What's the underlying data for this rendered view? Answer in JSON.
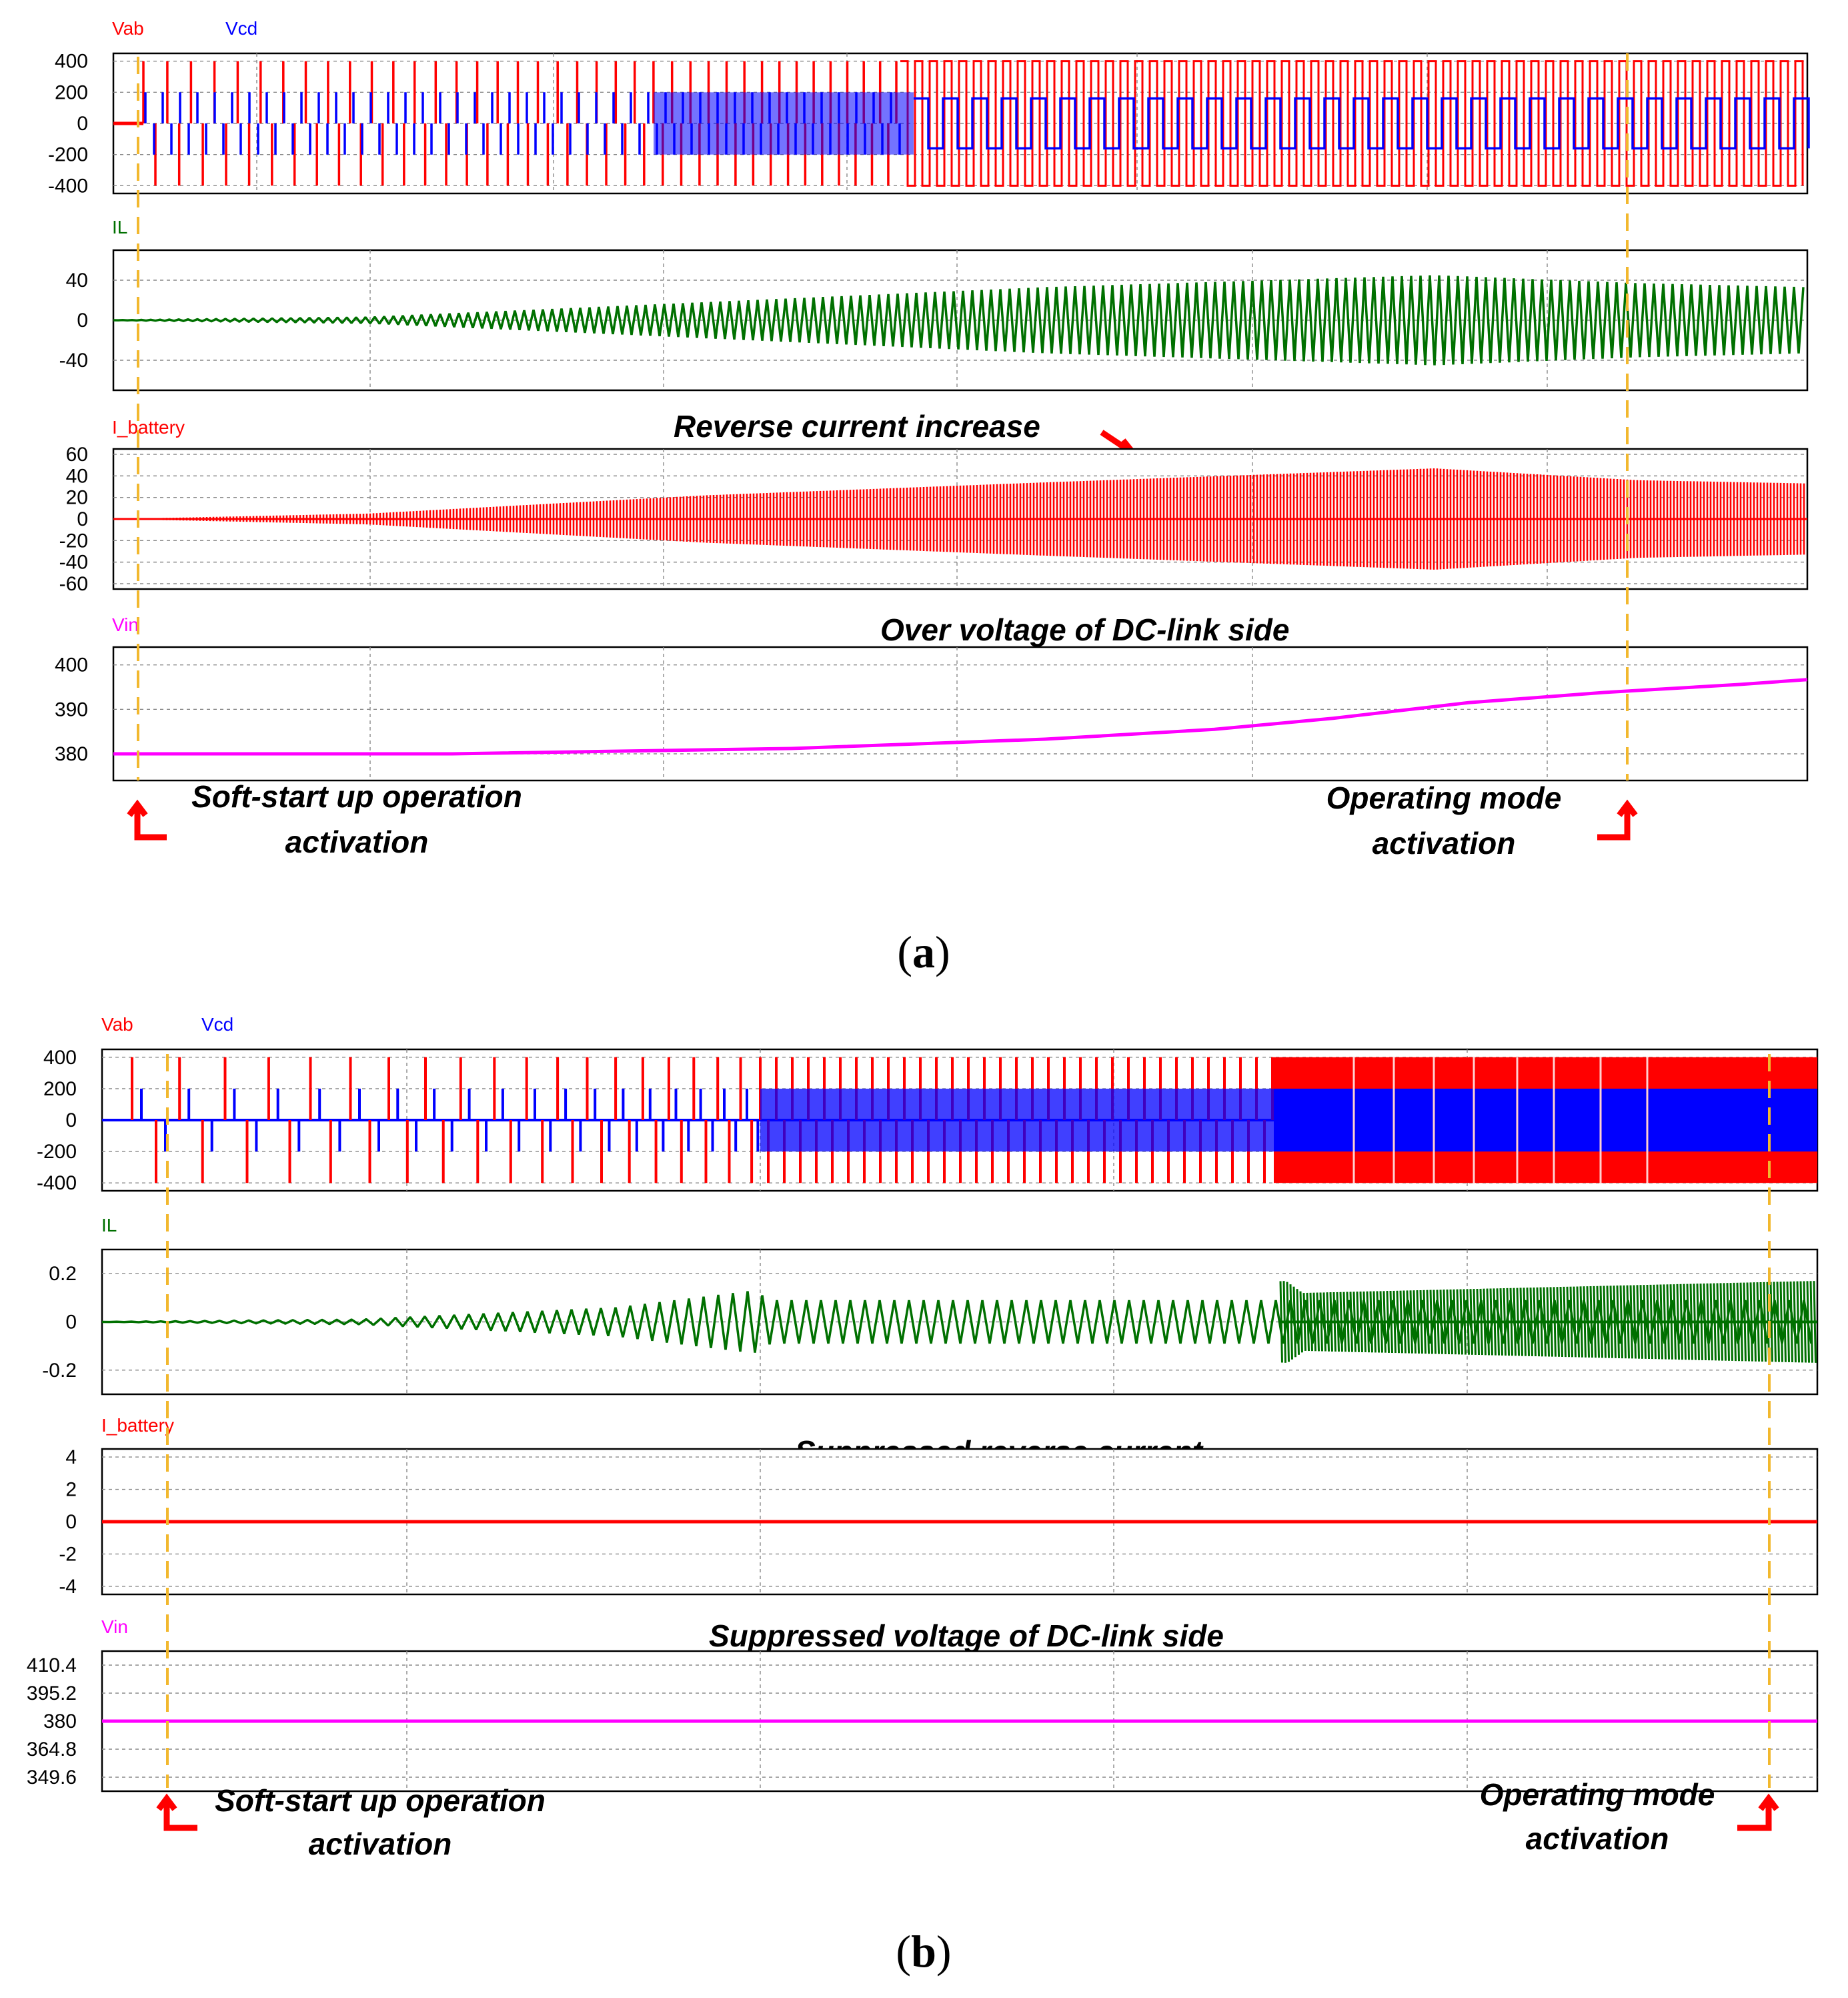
{
  "panels": [
    {
      "label": "(a)",
      "caption": {
        "open": "(",
        "letter": "a",
        "close": ")"
      },
      "signal_labels": {
        "top": [
          "Vab",
          "Vcd"
        ],
        "il": "IL",
        "ibat": "I_battery",
        "vin": "Vin"
      },
      "annotations": {
        "battery": "Reverse current increase",
        "vin": "Over voltage of DC-link side",
        "softstart_line1": "Soft-start up operation",
        "softstart_line2": "activation",
        "operating_line1": "Operating mode",
        "operating_line2": "activation"
      }
    },
    {
      "label": "(b)",
      "caption": {
        "open": "(",
        "letter": "b",
        "close": ")"
      },
      "signal_labels": {
        "top": [
          "Vab",
          "Vcd"
        ],
        "il": "IL",
        "ibat": "I_battery",
        "vin": "Vin"
      },
      "annotations": {
        "battery": "Suppressed reverse current",
        "vin": "Suppressed voltage of DC-link side",
        "softstart_line1": "Soft-start up operation",
        "softstart_line2": "activation",
        "operating_line1": "Operating mode",
        "operating_line2": "activation"
      }
    }
  ],
  "chart_data": [
    {
      "type": "line",
      "panel": "a",
      "title": "Vab, Vcd",
      "series": [
        {
          "name": "Vab",
          "color": "#ff0000",
          "description_values": {
            "amplitude": 400,
            "waveform": "square pulses, widening with time"
          }
        },
        {
          "name": "Vcd",
          "color": "#0000ff",
          "description_values": {
            "amplitude": 200,
            "waveform": "square pulses"
          }
        }
      ],
      "yticks": [
        "400",
        "200",
        "0",
        "-200",
        "-400"
      ],
      "ylim": [
        -450,
        450
      ]
    },
    {
      "type": "line",
      "panel": "a",
      "title": "IL",
      "series": [
        {
          "name": "IL",
          "color": "#007000",
          "envelope": [
            [
              0,
              0
            ],
            [
              0.15,
              3
            ],
            [
              0.35,
              18
            ],
            [
              0.55,
              33
            ],
            [
              0.78,
              45
            ],
            [
              0.9,
              37
            ],
            [
              1.0,
              33
            ]
          ]
        }
      ],
      "yticks": [
        "40",
        "0",
        "-40"
      ],
      "ylim": [
        -70,
        70
      ]
    },
    {
      "type": "line",
      "panel": "a",
      "title": "I_battery",
      "series": [
        {
          "name": "I_battery",
          "color": "#ff0000",
          "envelope": [
            [
              0,
              0
            ],
            [
              0.15,
              5
            ],
            [
              0.35,
              22
            ],
            [
              0.55,
              34
            ],
            [
              0.78,
              47
            ],
            [
              0.9,
              36
            ],
            [
              1.0,
              33
            ]
          ]
        }
      ],
      "yticks": [
        "60",
        "40",
        "20",
        "0",
        "-20",
        "-40",
        "-60"
      ],
      "ylim": [
        -65,
        65
      ]
    },
    {
      "type": "line",
      "panel": "a",
      "title": "Vin",
      "series": [
        {
          "name": "Vin",
          "color": "#ff00ff",
          "x": [
            0,
            0.2,
            0.4,
            0.55,
            0.65,
            0.72,
            0.8,
            0.88,
            0.96,
            1.0
          ],
          "y": [
            380,
            380,
            381.2,
            383.3,
            385.5,
            388,
            391.5,
            393.8,
            395.6,
            396.7
          ]
        }
      ],
      "yticks": [
        "400",
        "390",
        "380"
      ],
      "ylim": [
        374,
        404
      ]
    },
    {
      "type": "line",
      "panel": "b",
      "title": "Vab, Vcd",
      "series": [
        {
          "name": "Vab",
          "color": "#ff0000",
          "description_values": {
            "amplitude": 400,
            "waveform": "square pulses, densifying with time"
          }
        },
        {
          "name": "Vcd",
          "color": "#0000ff",
          "description_values": {
            "amplitude": 200,
            "waveform": "square pulses"
          }
        }
      ],
      "yticks": [
        "400",
        "200",
        "0",
        "-200",
        "-400"
      ],
      "ylim": [
        -450,
        450
      ]
    },
    {
      "type": "line",
      "panel": "b",
      "title": "IL",
      "series": [
        {
          "name": "IL",
          "color": "#007000",
          "envelope": [
            [
              0,
              0
            ],
            [
              0.15,
              0.01
            ],
            [
              0.3,
              0.06
            ],
            [
              0.38,
              0.13
            ],
            [
              0.39,
              0.09
            ],
            [
              0.6,
              0.13
            ],
            [
              0.69,
              0.17
            ],
            [
              0.7,
              0.12
            ],
            [
              1.0,
              0.17
            ]
          ]
        }
      ],
      "yticks": [
        "0.2",
        "0",
        "-0.2"
      ],
      "ylim": [
        -0.3,
        0.3
      ]
    },
    {
      "type": "line",
      "panel": "b",
      "title": "I_battery",
      "series": [
        {
          "name": "I_battery",
          "color": "#ff0000",
          "x": [
            0,
            1
          ],
          "y": [
            0,
            0
          ]
        }
      ],
      "yticks": [
        "4",
        "2",
        "0",
        "-2",
        "-4"
      ],
      "ylim": [
        -4.5,
        4.5
      ]
    },
    {
      "type": "line",
      "panel": "b",
      "title": "Vin",
      "series": [
        {
          "name": "Vin",
          "color": "#ff00ff",
          "x": [
            0,
            1
          ],
          "y": [
            380,
            380
          ]
        }
      ],
      "yticks": [
        "410.4",
        "395.2",
        "380",
        "364.8",
        "349.6"
      ],
      "ylim": [
        342,
        418
      ]
    }
  ]
}
